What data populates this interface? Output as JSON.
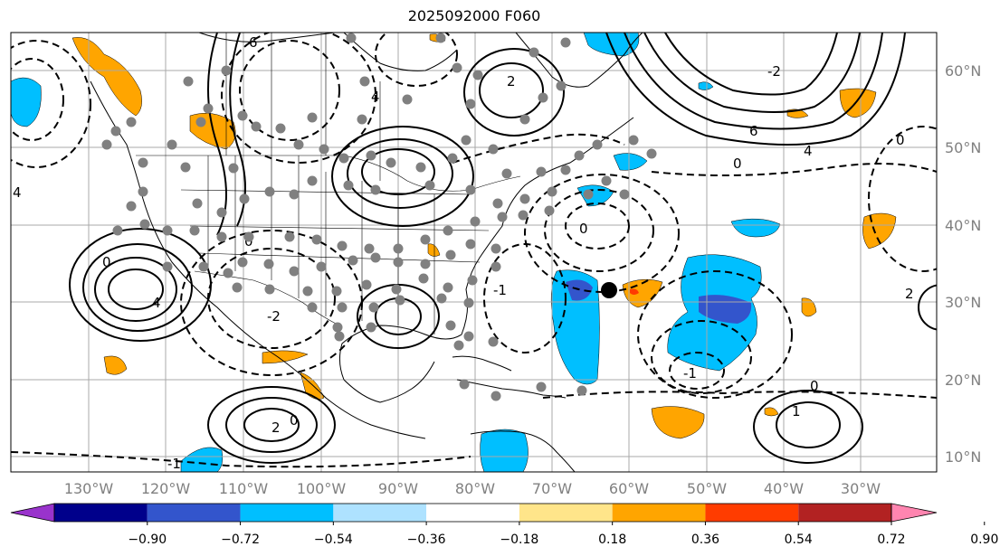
{
  "title": "2025092000 F060",
  "lon_labels": [
    "130°W",
    "120°W",
    "110°W",
    "100°W",
    "90°W",
    "80°W",
    "70°W",
    "60°W",
    "50°W",
    "40°W",
    "30°W"
  ],
  "lat_labels": [
    "60°N",
    "50°N",
    "40°N",
    "30°N",
    "20°N",
    "10°N"
  ],
  "contour_labels": [
    "0",
    "2",
    "4",
    "6",
    "-2",
    "-1",
    "1"
  ],
  "colorbar": {
    "ticks": [
      "−0.90",
      "−0.72",
      "−0.54",
      "−0.36",
      "−0.18",
      "0.18",
      "0.36",
      "0.54",
      "0.72",
      "0.90"
    ],
    "colors": [
      "#9933cc",
      "#00008b",
      "#3355cc",
      "#00bfff",
      "#aee2ff",
      "#ffffff",
      "#ffe58a",
      "#ffa500",
      "#ff3c00",
      "#b22222",
      "#ff85b0"
    ]
  },
  "palette": {
    "positive": "#ffa500",
    "negative": "#00bfff",
    "strong_negative": "#3355cc",
    "stations": "#808080",
    "marker": "#000000"
  }
}
